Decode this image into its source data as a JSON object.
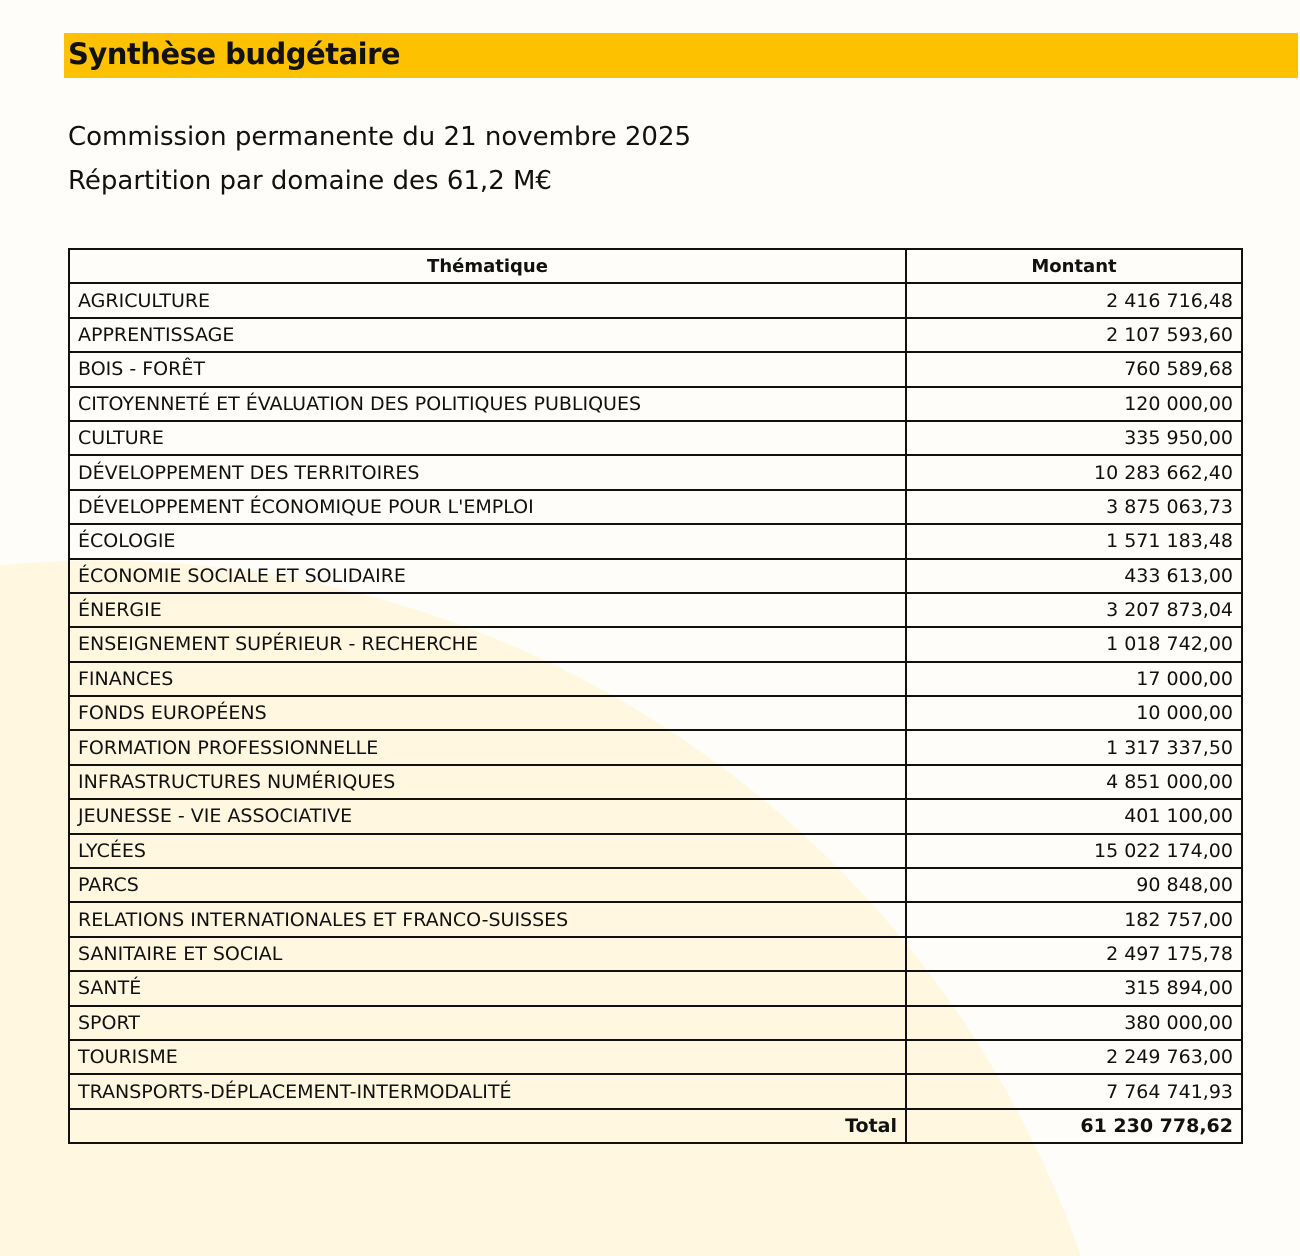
{
  "header": {
    "title": "Synthèse budgétaire",
    "subtitle1": "Commission permanente du 21 novembre 2025",
    "subtitle2": "Répartition par domaine des 61,2 M€"
  },
  "colors": {
    "banner": "#fec100",
    "background": "#fffdf9",
    "circle": "#fff7df"
  },
  "table": {
    "columns": [
      "Thématique",
      "Montant"
    ],
    "rows": [
      [
        "AGRICULTURE",
        "2 416 716,48"
      ],
      [
        "APPRENTISSAGE",
        "2 107 593,60"
      ],
      [
        "BOIS - FORÊT",
        "760 589,68"
      ],
      [
        "CITOYENNETÉ ET ÉVALUATION DES POLITIQUES PUBLIQUES",
        "120 000,00"
      ],
      [
        "CULTURE",
        "335 950,00"
      ],
      [
        "DÉVELOPPEMENT DES TERRITOIRES",
        "10 283 662,40"
      ],
      [
        "DÉVELOPPEMENT ÉCONOMIQUE POUR L'EMPLOI",
        "3 875 063,73"
      ],
      [
        "ÉCOLOGIE",
        "1 571 183,48"
      ],
      [
        "ÉCONOMIE SOCIALE ET SOLIDAIRE",
        "433 613,00"
      ],
      [
        "ÉNERGIE",
        "3 207 873,04"
      ],
      [
        "ENSEIGNEMENT SUPÉRIEUR - RECHERCHE",
        "1 018 742,00"
      ],
      [
        "FINANCES",
        "17 000,00"
      ],
      [
        "FONDS EUROPÉENS",
        "10 000,00"
      ],
      [
        "FORMATION PROFESSIONNELLE",
        "1 317 337,50"
      ],
      [
        "INFRASTRUCTURES NUMÉRIQUES",
        "4 851 000,00"
      ],
      [
        "JEUNESSE - VIE ASSOCIATIVE",
        "401 100,00"
      ],
      [
        "LYCÉES",
        "15 022 174,00"
      ],
      [
        "PARCS",
        "90 848,00"
      ],
      [
        "RELATIONS INTERNATIONALES ET FRANCO-SUISSES",
        "182 757,00"
      ],
      [
        "SANITAIRE ET SOCIAL",
        "2 497 175,78"
      ],
      [
        "SANTÉ",
        "315 894,00"
      ],
      [
        "SPORT",
        "380 000,00"
      ],
      [
        "TOURISME",
        "2 249 763,00"
      ],
      [
        "TRANSPORTS-DÉPLACEMENT-INTERMODALITÉ",
        "7 764 741,93"
      ]
    ],
    "total_label": "Total",
    "total_value": "61 230 778,62"
  }
}
